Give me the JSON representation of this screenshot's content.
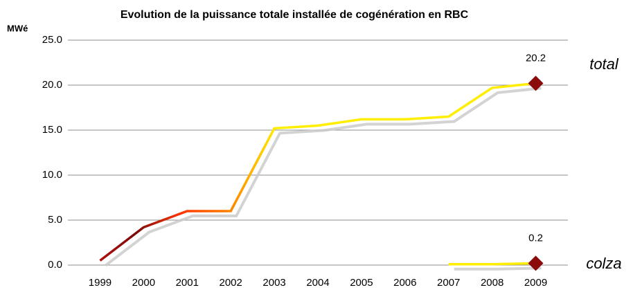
{
  "chart_data": {
    "type": "line",
    "title": "Evolution de la puissance totale installée de cogénération en RBC",
    "ylabel": "MWé",
    "categories": [
      "1999",
      "2000",
      "2001",
      "2002",
      "2003",
      "2004",
      "2005",
      "2006",
      "2007",
      "2008",
      "2009"
    ],
    "series": [
      {
        "name": "total",
        "color": "#ffee00",
        "marker_color": "#8b0a0a",
        "values": [
          0.5,
          4.2,
          6.0,
          6.0,
          15.2,
          15.5,
          16.2,
          16.2,
          16.5,
          19.7,
          20.2
        ],
        "value_labels": [
          null,
          null,
          null,
          null,
          null,
          null,
          null,
          null,
          null,
          null,
          "20.2"
        ]
      },
      {
        "name": "colza",
        "color": "#ffee00",
        "marker_color": "#8b0a0a",
        "values": [
          null,
          null,
          null,
          null,
          null,
          null,
          null,
          null,
          0.1,
          0.1,
          0.2
        ],
        "value_labels": [
          null,
          null,
          null,
          null,
          null,
          null,
          null,
          null,
          null,
          null,
          "0.2"
        ]
      }
    ],
    "ylim": [
      0,
      25
    ],
    "yticks": [
      {
        "value": 0,
        "label": "0.0"
      },
      {
        "value": 5,
        "label": "5.0"
      },
      {
        "value": 10,
        "label": "10.0"
      },
      {
        "value": 15,
        "label": "15.0"
      },
      {
        "value": 20,
        "label": "20.0"
      },
      {
        "value": 25,
        "label": "25.0"
      }
    ],
    "grid": true
  }
}
